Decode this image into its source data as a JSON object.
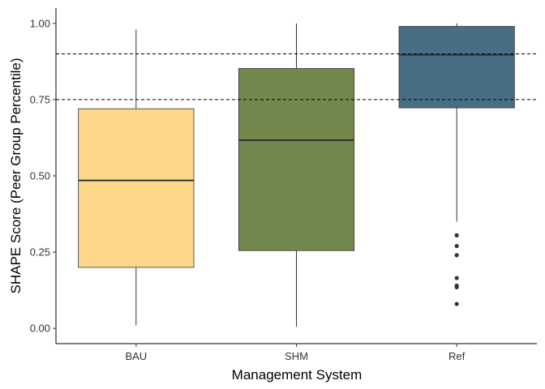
{
  "chart_data": {
    "type": "boxplot",
    "xlabel": "Management System",
    "ylabel": "SHAPE Score (Peer Group Percentile)",
    "ylim": [
      -0.05,
      1.05
    ],
    "yticks": [
      0.0,
      0.25,
      0.5,
      0.75,
      1.0
    ],
    "ytick_labels": [
      "0.00",
      "0.25",
      "0.50",
      "0.75",
      "1.00"
    ],
    "grid": false,
    "legend": "none",
    "reference_lines": [
      {
        "y": 0.75,
        "style": "dashed"
      },
      {
        "y": 0.9,
        "style": "dashed"
      }
    ],
    "categories": [
      "BAU",
      "SHM",
      "Ref"
    ],
    "boxes": [
      {
        "category": "BAU",
        "whisker_low": 0.01,
        "q1": 0.2,
        "median": 0.485,
        "q3": 0.72,
        "whisker_high": 0.98,
        "outliers": [],
        "color": "#FDD78A"
      },
      {
        "category": "SHM",
        "whisker_low": 0.005,
        "q1": 0.255,
        "median": 0.617,
        "q3": 0.852,
        "whisker_high": 1.0,
        "outliers": [],
        "color": "#72884D"
      },
      {
        "category": "Ref",
        "whisker_low": 0.35,
        "q1": 0.723,
        "median": 0.897,
        "q3": 0.99,
        "whisker_high": 1.0,
        "outliers": [
          0.305,
          0.27,
          0.24,
          0.165,
          0.14,
          0.135,
          0.08
        ],
        "color": "#476E85"
      }
    ]
  }
}
